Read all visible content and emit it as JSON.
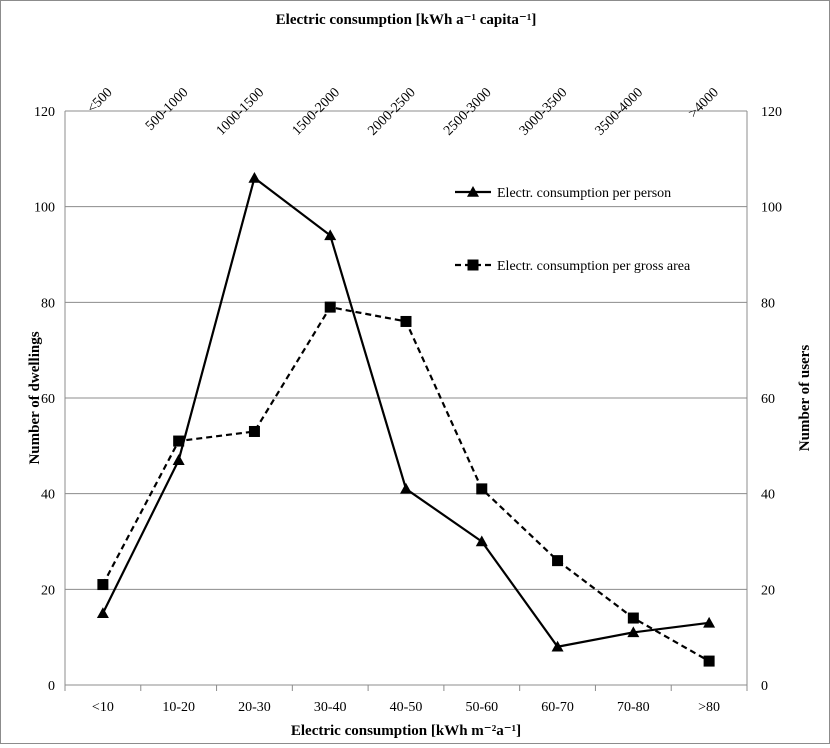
{
  "chart_data": {
    "type": "line",
    "top_axis_title": "Electric consumption [kWh a⁻¹ capita⁻¹]",
    "bottom_axis_title": "Electric consumption [kWh m⁻²a⁻¹]",
    "ylabel_left": "Number of dwellings",
    "ylabel_right": "Number of users",
    "categories": [
      "<10",
      "10-20",
      "20-30",
      "30-40",
      "40-50",
      "50-60",
      "60-70",
      "70-80",
      ">80"
    ],
    "top_categories": [
      "<500",
      "500-1000",
      "1000-1500",
      "1500-2000",
      "2000-2500",
      "2500-3000",
      "3000-3500",
      "3500-4000",
      ">4000"
    ],
    "ylim": [
      0,
      120
    ],
    "yticks": [
      0,
      20,
      40,
      60,
      80,
      100,
      120
    ],
    "grid": "horizontal",
    "legend_position": "top-right",
    "series": [
      {
        "name": "Electr. consumption per person",
        "marker": "triangle",
        "line_style": "solid",
        "color": "#000000",
        "values": [
          15,
          47,
          106,
          94,
          41,
          30,
          8,
          11,
          13
        ]
      },
      {
        "name": "Electr. consumption per gross area",
        "marker": "square",
        "line_style": "dashed",
        "color": "#000000",
        "values": [
          21,
          51,
          53,
          79,
          76,
          41,
          26,
          14,
          5
        ]
      }
    ]
  }
}
